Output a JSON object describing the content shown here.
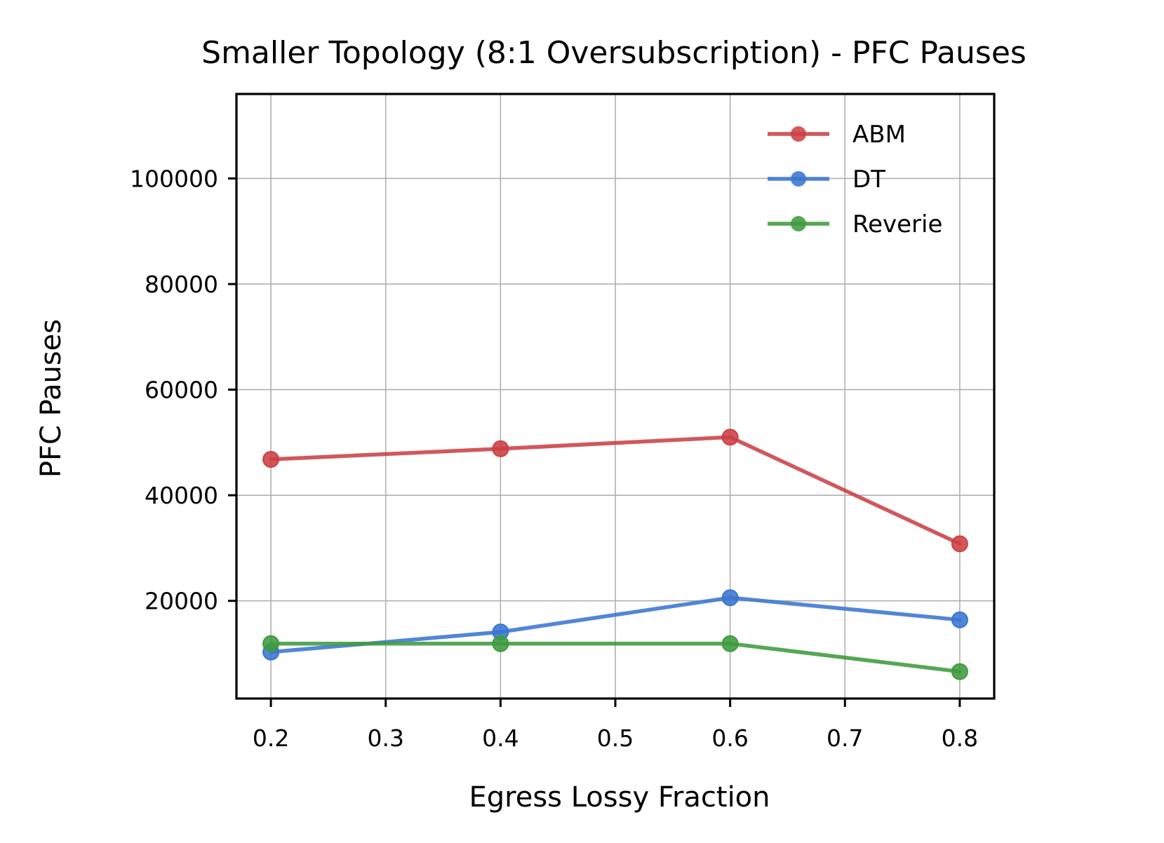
{
  "chart_data": {
    "type": "line",
    "title": "Smaller Topology (8:1 Oversubscription) - PFC Pauses",
    "xlabel": "Egress Lossy Fraction",
    "ylabel": "PFC Pauses",
    "x": [
      0.2,
      0.4,
      0.6,
      0.8
    ],
    "xlim": [
      0.17,
      0.83
    ],
    "ylim": [
      1500,
      116000
    ],
    "xticks": [
      "0.2",
      "0.3",
      "0.4",
      "0.5",
      "0.6",
      "0.7",
      "0.8"
    ],
    "yticks": [
      "20000",
      "40000",
      "60000",
      "80000",
      "100000"
    ],
    "grid": true,
    "legend_position": "top-right",
    "series": [
      {
        "name": "ABM",
        "color": "#cc4044",
        "values": [
          46800,
          48800,
          51000,
          30800
        ]
      },
      {
        "name": "DT",
        "color": "#3a75d0",
        "values": [
          10300,
          14100,
          20600,
          16400
        ]
      },
      {
        "name": "Reverie",
        "color": "#3e9b3e",
        "values": [
          11900,
          11900,
          11900,
          6600
        ]
      }
    ]
  }
}
